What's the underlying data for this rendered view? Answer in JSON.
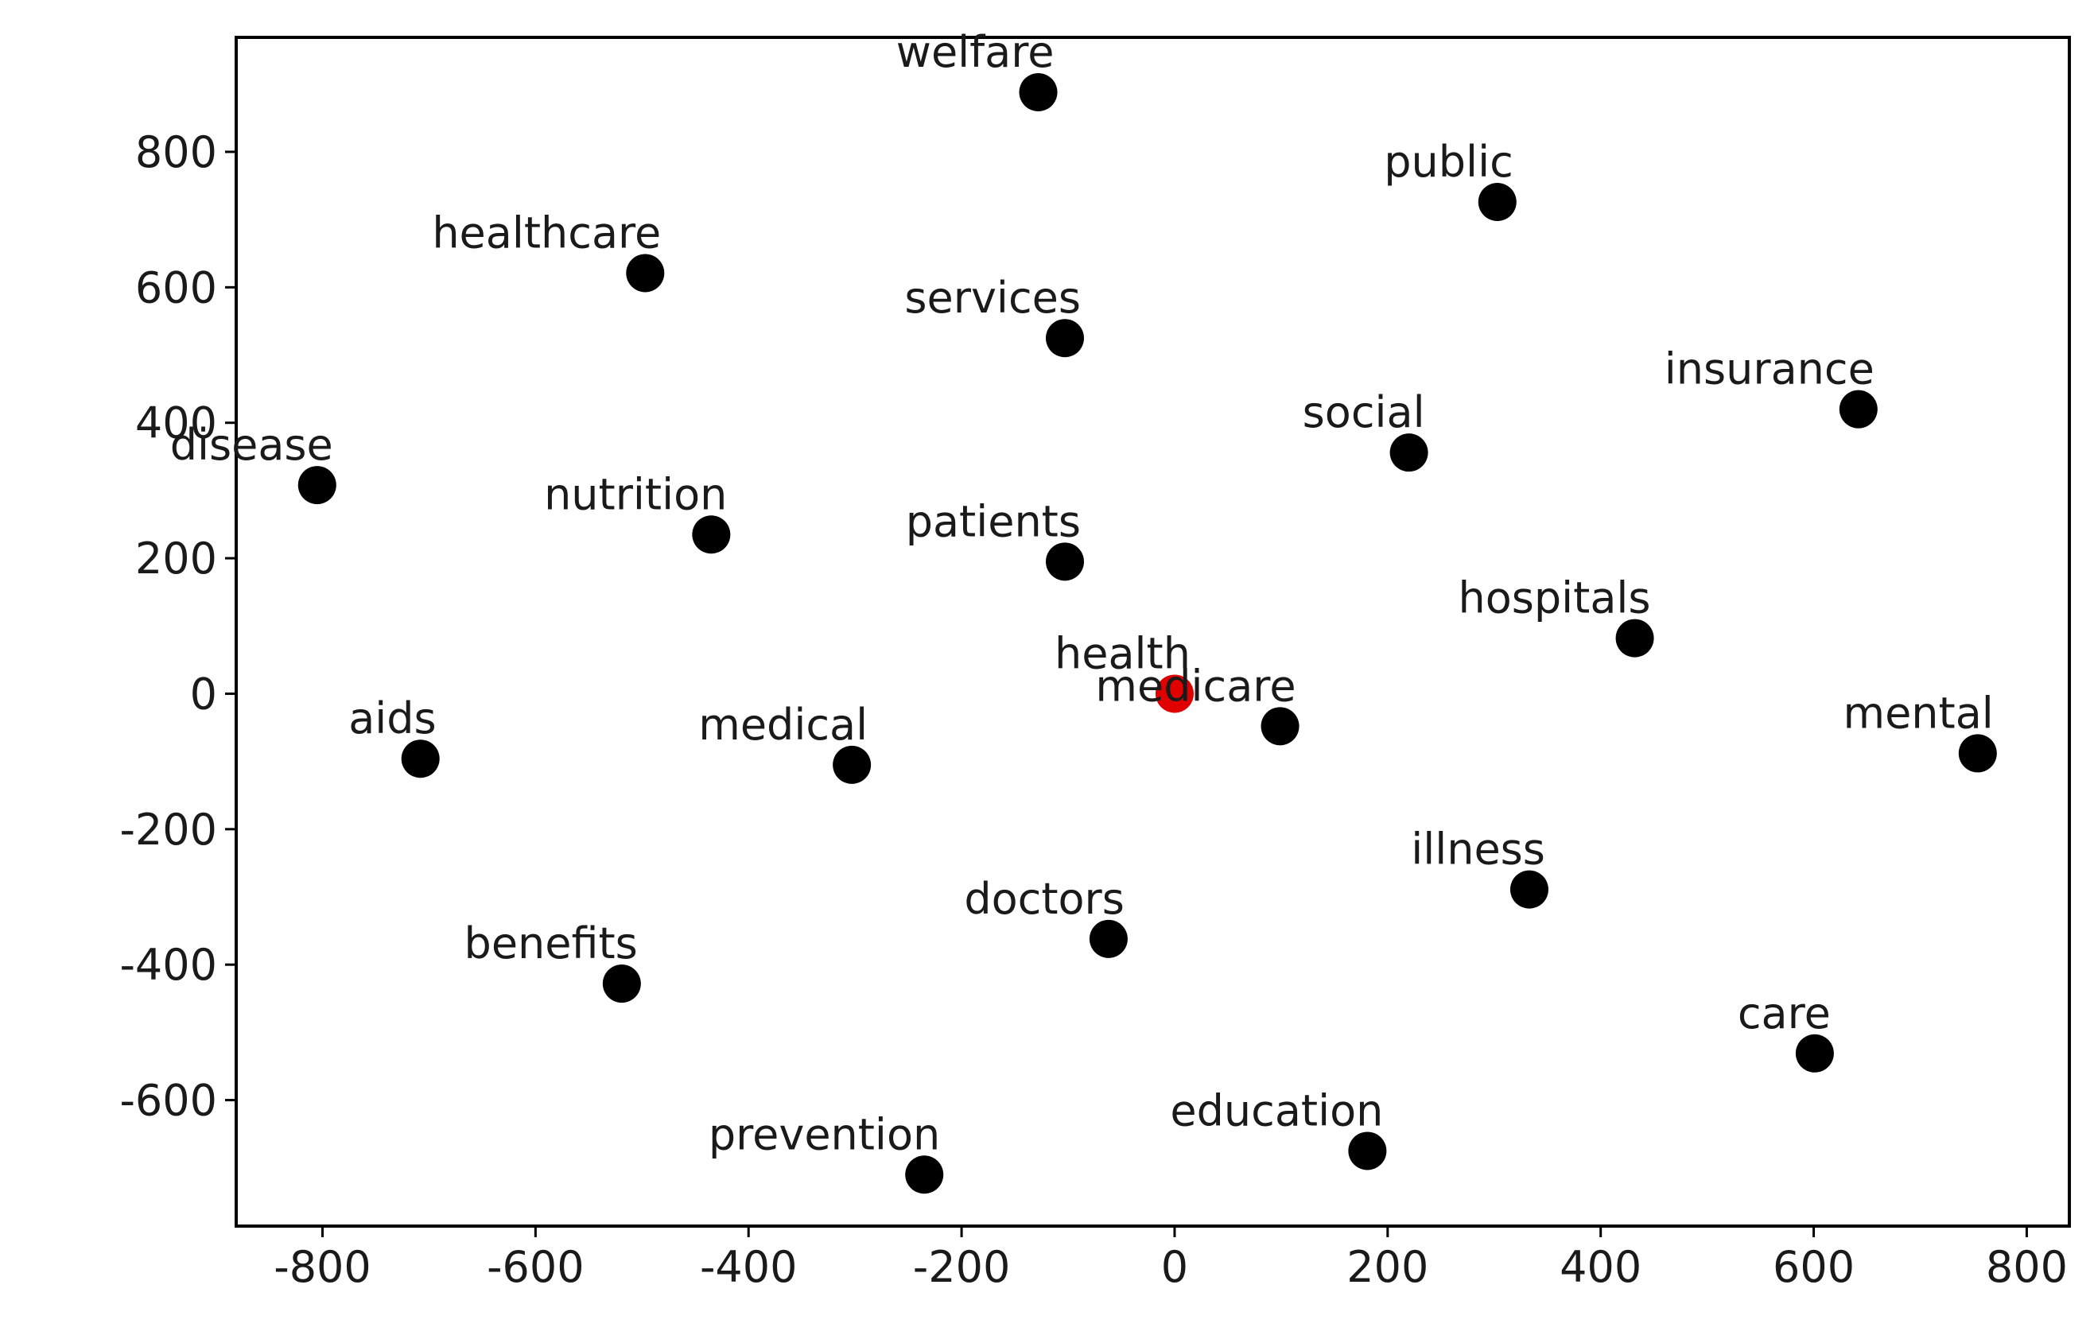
{
  "chart_data": {
    "type": "scatter",
    "labels": [
      "welfare",
      "public",
      "healthcare",
      "services",
      "insurance",
      "disease",
      "social",
      "nutrition",
      "patients",
      "hospitals",
      "health",
      "medicare",
      "mental",
      "aids",
      "medical",
      "illness",
      "doctors",
      "benefits",
      "care",
      "education",
      "prevention"
    ],
    "x": [
      -128,
      303,
      -497,
      -103,
      642,
      -805,
      220,
      -435,
      -103,
      432,
      0,
      99,
      754,
      -708,
      -303,
      333,
      -62,
      -519,
      601,
      181,
      -235
    ],
    "values": [
      888,
      726,
      621,
      525,
      420,
      308,
      356,
      235,
      195,
      82,
      0,
      -48,
      -88,
      -96,
      -105,
      -289,
      -362,
      -428,
      -531,
      -675,
      -710
    ],
    "colors": [
      "#000000",
      "#000000",
      "#000000",
      "#000000",
      "#000000",
      "#000000",
      "#000000",
      "#000000",
      "#000000",
      "#000000",
      "#e00000",
      "#000000",
      "#000000",
      "#000000",
      "#000000",
      "#000000",
      "#000000",
      "#000000",
      "#000000",
      "#000000",
      "#000000"
    ],
    "xlim": [
      -881,
      840
    ],
    "ylim": [
      -786,
      969
    ],
    "xticks": [
      -800,
      -600,
      -400,
      -200,
      0,
      200,
      400,
      600,
      800
    ],
    "yticks": [
      -600,
      -400,
      -200,
      0,
      200,
      400,
      600,
      800
    ]
  }
}
